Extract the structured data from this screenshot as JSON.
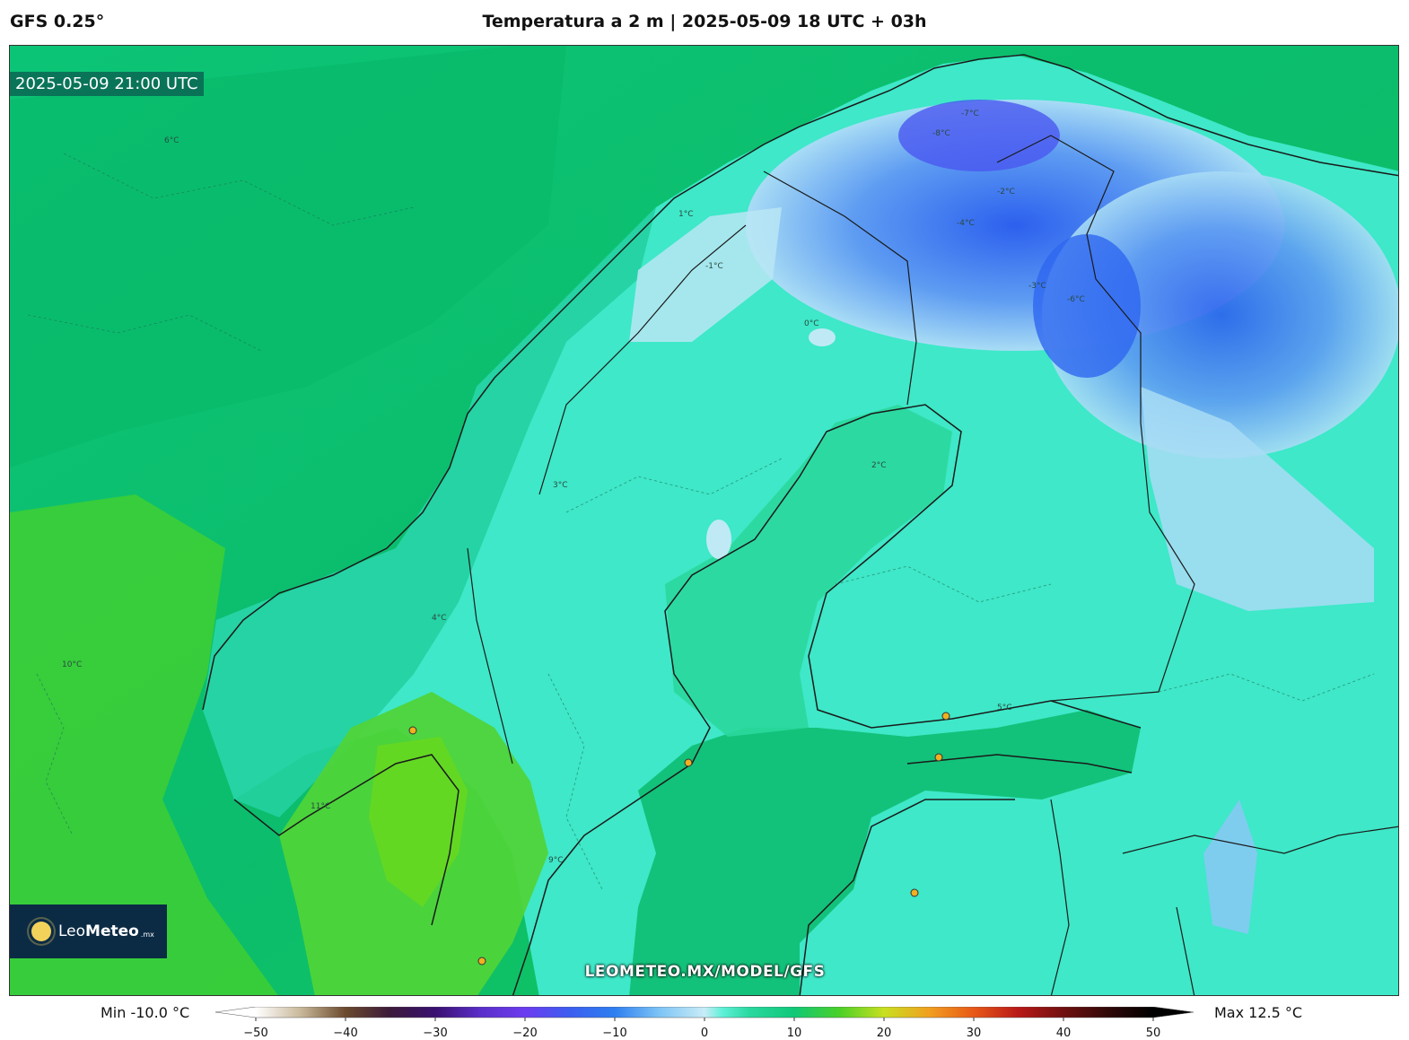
{
  "header": {
    "model": "GFS 0.25°",
    "title": "Temperatura a 2 m | 2025-05-09 18 UTC + 03h"
  },
  "map": {
    "valid_time": "2025-05-09 21:00 UTC",
    "watermark": "LEOMETEO.MX/MODEL/GFS",
    "logo": {
      "brand_light": "Leo",
      "brand_bold": "Meteo",
      "tld": ".mx"
    },
    "contour_labels": [
      "6°C",
      "1°C",
      "-1°C",
      "-3°C",
      "-6°C",
      "-8°C",
      "-7°C",
      "-2°C",
      "-4°C",
      "0°C",
      "2°C",
      "3°C",
      "4°C",
      "5°C",
      "9°C",
      "10°C",
      "11°C"
    ]
  },
  "colorbar": {
    "min_label": "Min -10.0 °C",
    "max_label": "Max 12.5 °C",
    "ticks": [
      "−50",
      "−40",
      "−30",
      "−20",
      "−10",
      "0",
      "10",
      "20",
      "30",
      "40",
      "50"
    ],
    "range": [
      -50,
      50
    ],
    "stops": [
      {
        "v": -50,
        "c": "#ffffff"
      },
      {
        "v": -45,
        "c": "#c9b89a"
      },
      {
        "v": -40,
        "c": "#6b4a2e"
      },
      {
        "v": -35,
        "c": "#3b1a3a"
      },
      {
        "v": -30,
        "c": "#3a1070"
      },
      {
        "v": -25,
        "c": "#5a2ec8"
      },
      {
        "v": -20,
        "c": "#6c3cf0"
      },
      {
        "v": -15,
        "c": "#3b5ef0"
      },
      {
        "v": -10,
        "c": "#2e7ff0"
      },
      {
        "v": -5,
        "c": "#7ec4f5"
      },
      {
        "v": 0,
        "c": "#c8ecf7"
      },
      {
        "v": 2,
        "c": "#5ef0d8"
      },
      {
        "v": 5,
        "c": "#2ad8a0"
      },
      {
        "v": 10,
        "c": "#10c878"
      },
      {
        "v": 15,
        "c": "#4ad028"
      },
      {
        "v": 20,
        "c": "#c8e020"
      },
      {
        "v": 25,
        "c": "#f0a020"
      },
      {
        "v": 30,
        "c": "#e85818"
      },
      {
        "v": 35,
        "c": "#b81818"
      },
      {
        "v": 40,
        "c": "#701010"
      },
      {
        "v": 45,
        "c": "#300808"
      },
      {
        "v": 50,
        "c": "#000000"
      }
    ]
  },
  "colors": {
    "sea_warm": "#08c070",
    "land_cool": "#3ee8c8",
    "cold": "#3a78f0",
    "warm_land": "#58d02a"
  }
}
